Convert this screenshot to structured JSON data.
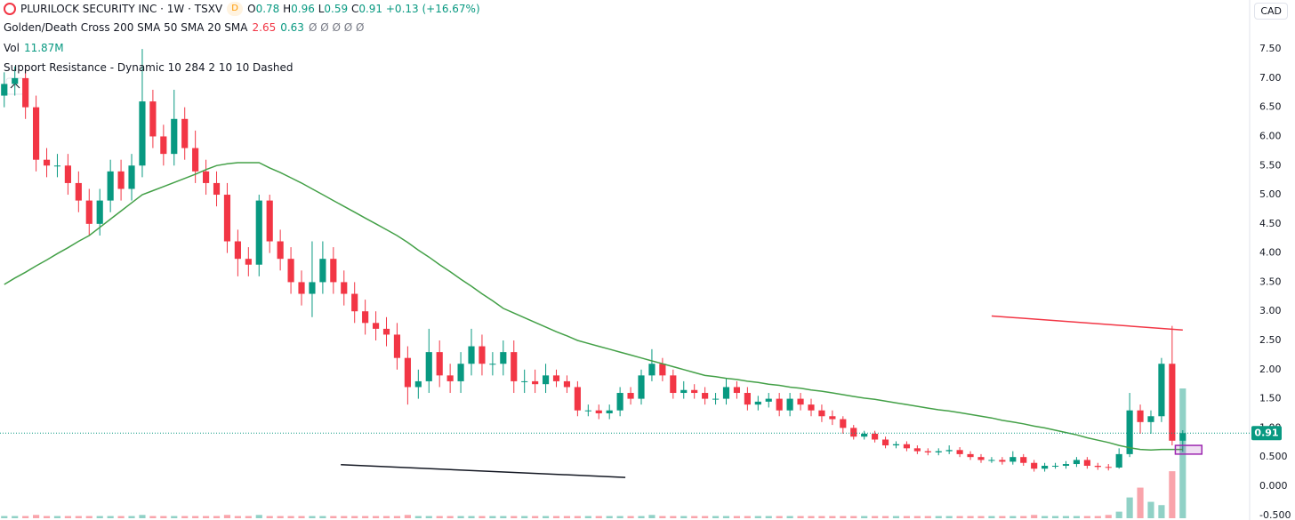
{
  "chart_data": {
    "type": "candlestick",
    "title": "PLURILOCK SECURITY INC · 1W · TSXV",
    "badge": "D",
    "legend_letters": [
      "O",
      "H",
      "L",
      "C"
    ],
    "change_label": "+0.13 (+16.67%)",
    "currency": "CAD",
    "indicators": [
      {
        "name": "Golden/Death Cross 200 SMA 50 SMA 20 SMA",
        "values": [
          2.65
        ],
        "na": "Ø Ø Ø Ø Ø"
      },
      {
        "name": "Vol"
      },
      {
        "name": "Support Resistance - Dynamic 10 284 2 10 10 Dashed"
      }
    ],
    "up_color": "#089981",
    "down_color": "#f23645",
    "xlim": [
      -0.4,
      117.3
    ],
    "ylim": [
      -0.58,
      8.34
    ],
    "grid": false,
    "yticks": [
      {
        "value": 7.5,
        "label": "7.50"
      },
      {
        "value": 7,
        "label": "7.00"
      },
      {
        "value": 6.5,
        "label": "6.50"
      },
      {
        "value": 6,
        "label": "6.00"
      },
      {
        "value": 5.5,
        "label": "5.50"
      },
      {
        "value": 5,
        "label": "5.00"
      },
      {
        "value": 4.5,
        "label": "4.50"
      },
      {
        "value": 4,
        "label": "4.00"
      },
      {
        "value": 3.5,
        "label": "3.50"
      },
      {
        "value": 3,
        "label": "3.00"
      },
      {
        "value": 2.5,
        "label": "2.50"
      },
      {
        "value": 2,
        "label": "2.00"
      },
      {
        "value": 1.5,
        "label": "1.50"
      },
      {
        "value": 1,
        "label": "1.00"
      },
      {
        "value": 0.5,
        "label": "0.500"
      },
      {
        "value": 0,
        "label": "0.000"
      },
      {
        "value": -0.5,
        "label": "-0.500"
      }
    ],
    "open": [
      6.7,
      6.9,
      7.0,
      6.5,
      5.6,
      5.5,
      5.5,
      5.2,
      4.9,
      4.5,
      4.9,
      5.4,
      5.1,
      5.5,
      6.6,
      6.0,
      5.7,
      6.3,
      5.8,
      5.4,
      5.2,
      5.0,
      4.2,
      3.9,
      3.8,
      4.9,
      4.2,
      3.9,
      3.5,
      3.3,
      3.5,
      3.9,
      3.5,
      3.3,
      3.0,
      2.8,
      2.7,
      2.6,
      2.2,
      1.7,
      1.8,
      2.3,
      1.9,
      1.8,
      2.1,
      2.4,
      2.1,
      2.1,
      2.3,
      1.8,
      1.8,
      1.75,
      1.9,
      1.8,
      1.7,
      1.3,
      1.3,
      1.25,
      1.3,
      1.6,
      1.5,
      1.9,
      2.1,
      1.9,
      1.6,
      1.65,
      1.6,
      1.5,
      1.5,
      1.7,
      1.6,
      1.4,
      1.45,
      1.5,
      1.3,
      1.5,
      1.4,
      1.3,
      1.2,
      1.15,
      1.0,
      0.85,
      0.9,
      0.8,
      0.7,
      0.72,
      0.65,
      0.6,
      0.58,
      0.6,
      0.62,
      0.55,
      0.5,
      0.45,
      0.45,
      0.42,
      0.5,
      0.4,
      0.3,
      0.35,
      0.35,
      0.38,
      0.45,
      0.35,
      0.33,
      0.32,
      0.55,
      1.3,
      1.1,
      1.2,
      2.1,
      0.78
    ],
    "high": [
      7.1,
      7.2,
      7.2,
      6.7,
      5.8,
      5.7,
      5.7,
      5.4,
      5.1,
      5.1,
      5.6,
      5.6,
      5.7,
      7.5,
      6.8,
      6.2,
      6.8,
      6.5,
      6.1,
      5.6,
      5.4,
      5.2,
      4.4,
      4.1,
      5.0,
      5.0,
      4.4,
      4.1,
      3.7,
      4.2,
      4.2,
      4.1,
      3.7,
      3.5,
      3.2,
      3.0,
      2.9,
      2.8,
      2.4,
      2.0,
      2.7,
      2.5,
      2.1,
      2.3,
      2.7,
      2.6,
      2.3,
      2.5,
      2.5,
      2.0,
      2.0,
      2.1,
      2.0,
      1.9,
      1.8,
      1.4,
      1.4,
      1.4,
      1.7,
      1.7,
      2.0,
      2.35,
      2.2,
      2.0,
      1.8,
      1.75,
      1.7,
      1.6,
      1.85,
      1.8,
      1.7,
      1.55,
      1.6,
      1.6,
      1.6,
      1.6,
      1.5,
      1.4,
      1.3,
      1.2,
      1.05,
      0.95,
      0.95,
      0.85,
      0.77,
      0.77,
      0.7,
      0.65,
      0.65,
      0.7,
      0.67,
      0.6,
      0.55,
      0.5,
      0.5,
      0.6,
      0.55,
      0.45,
      0.4,
      0.4,
      0.43,
      0.5,
      0.5,
      0.4,
      0.38,
      0.65,
      1.6,
      1.4,
      1.3,
      2.2,
      2.75,
      0.96
    ],
    "low": [
      6.5,
      6.7,
      6.3,
      5.4,
      5.3,
      5.3,
      5.0,
      4.7,
      4.3,
      4.3,
      4.7,
      4.9,
      4.9,
      5.3,
      5.8,
      5.5,
      5.5,
      5.6,
      5.2,
      5.0,
      4.8,
      4.0,
      3.6,
      3.6,
      3.6,
      4.0,
      3.7,
      3.3,
      3.1,
      2.9,
      3.3,
      3.3,
      3.1,
      2.8,
      2.6,
      2.5,
      2.4,
      2.0,
      1.4,
      1.5,
      1.6,
      1.7,
      1.6,
      1.6,
      1.9,
      1.9,
      1.9,
      1.9,
      1.6,
      1.6,
      1.6,
      1.6,
      1.7,
      1.6,
      1.2,
      1.2,
      1.15,
      1.15,
      1.2,
      1.4,
      1.4,
      1.8,
      1.8,
      1.5,
      1.5,
      1.5,
      1.4,
      1.4,
      1.4,
      1.5,
      1.3,
      1.3,
      1.35,
      1.2,
      1.2,
      1.3,
      1.2,
      1.1,
      1.05,
      0.9,
      0.8,
      0.8,
      0.75,
      0.65,
      0.65,
      0.6,
      0.55,
      0.53,
      0.53,
      0.55,
      0.5,
      0.45,
      0.4,
      0.4,
      0.37,
      0.37,
      0.35,
      0.25,
      0.25,
      0.3,
      0.3,
      0.33,
      0.3,
      0.28,
      0.27,
      0.3,
      0.5,
      0.9,
      0.9,
      1.1,
      0.7,
      0.59
    ],
    "close": [
      6.9,
      7.0,
      6.5,
      5.6,
      5.5,
      5.5,
      5.2,
      4.9,
      4.5,
      4.9,
      5.4,
      5.1,
      5.5,
      6.6,
      6.0,
      5.7,
      6.3,
      5.8,
      5.4,
      5.2,
      5.0,
      4.2,
      3.9,
      3.8,
      4.9,
      4.2,
      3.9,
      3.5,
      3.3,
      3.5,
      3.9,
      3.5,
      3.3,
      3.0,
      2.8,
      2.7,
      2.6,
      2.2,
      1.7,
      1.8,
      2.3,
      1.9,
      1.8,
      2.1,
      2.4,
      2.1,
      2.1,
      2.3,
      1.8,
      1.8,
      1.75,
      1.9,
      1.8,
      1.7,
      1.3,
      1.3,
      1.25,
      1.3,
      1.6,
      1.5,
      1.9,
      2.1,
      1.9,
      1.6,
      1.65,
      1.6,
      1.5,
      1.5,
      1.7,
      1.6,
      1.4,
      1.45,
      1.5,
      1.3,
      1.5,
      1.4,
      1.3,
      1.2,
      1.15,
      1.0,
      0.85,
      0.9,
      0.8,
      0.7,
      0.72,
      0.65,
      0.6,
      0.58,
      0.6,
      0.62,
      0.55,
      0.5,
      0.45,
      0.45,
      0.42,
      0.5,
      0.4,
      0.3,
      0.35,
      0.35,
      0.38,
      0.45,
      0.35,
      0.33,
      0.32,
      0.55,
      1.3,
      1.1,
      1.2,
      2.1,
      0.78,
      0.91
    ],
    "volume": [
      0.2,
      0.2,
      0.2,
      0.3,
      0.2,
      0.2,
      0.2,
      0.2,
      0.2,
      0.2,
      0.2,
      0.2,
      0.2,
      0.3,
      0.2,
      0.2,
      0.2,
      0.2,
      0.2,
      0.2,
      0.2,
      0.3,
      0.2,
      0.2,
      0.3,
      0.2,
      0.2,
      0.2,
      0.2,
      0.2,
      0.2,
      0.2,
      0.2,
      0.2,
      0.2,
      0.2,
      0.2,
      0.2,
      0.3,
      0.2,
      0.2,
      0.2,
      0.2,
      0.2,
      0.2,
      0.2,
      0.2,
      0.2,
      0.2,
      0.2,
      0.2,
      0.2,
      0.2,
      0.2,
      0.2,
      0.2,
      0.2,
      0.2,
      0.2,
      0.2,
      0.2,
      0.3,
      0.2,
      0.2,
      0.2,
      0.2,
      0.2,
      0.2,
      0.2,
      0.2,
      0.2,
      0.2,
      0.2,
      0.2,
      0.2,
      0.2,
      0.2,
      0.2,
      0.2,
      0.2,
      0.2,
      0.2,
      0.2,
      0.2,
      0.2,
      0.2,
      0.2,
      0.2,
      0.2,
      0.2,
      0.2,
      0.2,
      0.2,
      0.2,
      0.2,
      0.2,
      0.2,
      0.3,
      0.2,
      0.2,
      0.2,
      0.2,
      0.2,
      0.2,
      0.3,
      0.6,
      1.9,
      2.8,
      1.5,
      1.2,
      4.3,
      11.87
    ],
    "volume_label": "11.87M",
    "sma": {
      "color": "#43a047",
      "values": [
        3.46,
        3.57,
        3.67,
        3.78,
        3.88,
        3.99,
        4.09,
        4.2,
        4.3,
        4.44,
        4.58,
        4.72,
        4.86,
        5.0,
        5.07,
        5.14,
        5.21,
        5.28,
        5.35,
        5.43,
        5.5,
        5.53,
        5.55,
        5.55,
        5.55,
        5.46,
        5.38,
        5.29,
        5.2,
        5.1,
        5.0,
        4.9,
        4.8,
        4.7,
        4.6,
        4.5,
        4.4,
        4.3,
        4.18,
        4.05,
        3.93,
        3.8,
        3.68,
        3.55,
        3.43,
        3.3,
        3.18,
        3.05,
        2.97,
        2.89,
        2.81,
        2.73,
        2.65,
        2.58,
        2.5,
        2.45,
        2.4,
        2.35,
        2.3,
        2.25,
        2.2,
        2.15,
        2.1,
        2.05,
        2.0,
        1.95,
        1.9,
        1.88,
        1.85,
        1.83,
        1.8,
        1.78,
        1.75,
        1.73,
        1.7,
        1.68,
        1.65,
        1.63,
        1.6,
        1.57,
        1.54,
        1.51,
        1.49,
        1.46,
        1.43,
        1.4,
        1.37,
        1.34,
        1.31,
        1.29,
        1.26,
        1.23,
        1.2,
        1.17,
        1.13,
        1.1,
        1.07,
        1.03,
        1.0,
        0.96,
        0.92,
        0.88,
        0.83,
        0.79,
        0.75,
        0.7,
        0.66,
        0.63,
        0.62,
        0.63,
        0.63,
        0.63
      ]
    },
    "lines": [
      {
        "color": "#f23645",
        "x": [
          93,
          111
        ],
        "values": [
          2.92,
          2.68
        ]
      },
      {
        "color": "#131722",
        "x": [
          31.7,
          58.5
        ],
        "values": [
          0.37,
          0.15
        ]
      }
    ],
    "box": {
      "color": "#9c27b0",
      "x": [
        110.3,
        112.8
      ],
      "values": [
        0.55,
        0.7
      ]
    }
  }
}
